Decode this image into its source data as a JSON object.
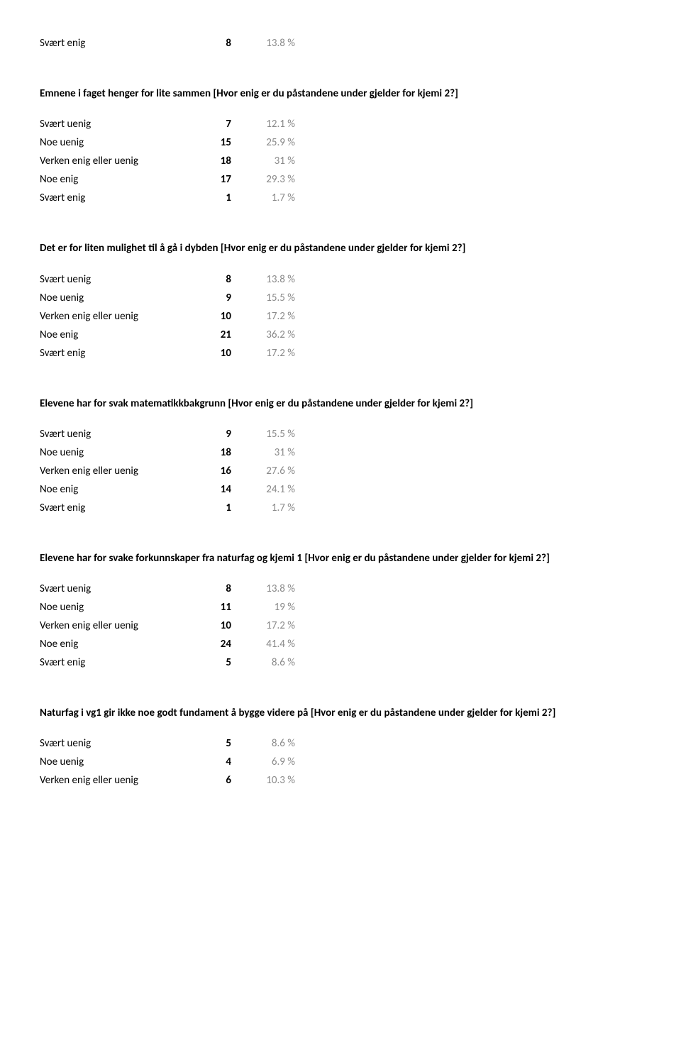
{
  "topRow": {
    "label": "Svært enig",
    "count": "8",
    "pct": "13.8 %"
  },
  "sections": [
    {
      "heading": "Emnene i faget henger for lite sammen [Hvor enig er du påstandene under gjelder for kjemi 2?]",
      "rows": [
        {
          "label": "Svært uenig",
          "count": "7",
          "pct": "12.1 %"
        },
        {
          "label": "Noe uenig",
          "count": "15",
          "pct": "25.9 %"
        },
        {
          "label": "Verken enig eller uenig",
          "count": "18",
          "pct": "31 %"
        },
        {
          "label": "Noe enig",
          "count": "17",
          "pct": "29.3 %"
        },
        {
          "label": "Svært enig",
          "count": "1",
          "pct": "1.7 %"
        }
      ]
    },
    {
      "heading": "Det er for liten mulighet til å gå i dybden [Hvor enig er du påstandene under gjelder for kjemi 2?]",
      "rows": [
        {
          "label": "Svært uenig",
          "count": "8",
          "pct": "13.8 %"
        },
        {
          "label": "Noe uenig",
          "count": "9",
          "pct": "15.5 %"
        },
        {
          "label": "Verken enig eller uenig",
          "count": "10",
          "pct": "17.2 %"
        },
        {
          "label": "Noe enig",
          "count": "21",
          "pct": "36.2 %"
        },
        {
          "label": "Svært enig",
          "count": "10",
          "pct": "17.2 %"
        }
      ]
    },
    {
      "heading": "Elevene har for svak matematikkbakgrunn [Hvor enig er du påstandene under gjelder for kjemi 2?]",
      "rows": [
        {
          "label": "Svært uenig",
          "count": "9",
          "pct": "15.5 %"
        },
        {
          "label": "Noe uenig",
          "count": "18",
          "pct": "31 %"
        },
        {
          "label": "Verken enig eller uenig",
          "count": "16",
          "pct": "27.6 %"
        },
        {
          "label": "Noe enig",
          "count": "14",
          "pct": "24.1 %"
        },
        {
          "label": "Svært enig",
          "count": "1",
          "pct": "1.7 %"
        }
      ]
    },
    {
      "heading": "Elevene har for svake forkunnskaper fra naturfag og kjemi 1 [Hvor enig er du påstandene under gjelder for kjemi 2?]",
      "rows": [
        {
          "label": "Svært uenig",
          "count": "8",
          "pct": "13.8 %"
        },
        {
          "label": "Noe uenig",
          "count": "11",
          "pct": "19 %"
        },
        {
          "label": "Verken enig eller uenig",
          "count": "10",
          "pct": "17.2 %"
        },
        {
          "label": "Noe enig",
          "count": "24",
          "pct": "41.4 %"
        },
        {
          "label": "Svært enig",
          "count": "5",
          "pct": "8.6 %"
        }
      ]
    },
    {
      "heading": "Naturfag i vg1 gir ikke noe godt fundament å bygge videre på [Hvor enig er du påstandene under gjelder for kjemi 2?]",
      "rows": [
        {
          "label": "Svært uenig",
          "count": "5",
          "pct": "8.6 %"
        },
        {
          "label": "Noe uenig",
          "count": "4",
          "pct": "6.9 %"
        },
        {
          "label": "Verken enig eller uenig",
          "count": "6",
          "pct": "10.3 %"
        }
      ]
    }
  ]
}
